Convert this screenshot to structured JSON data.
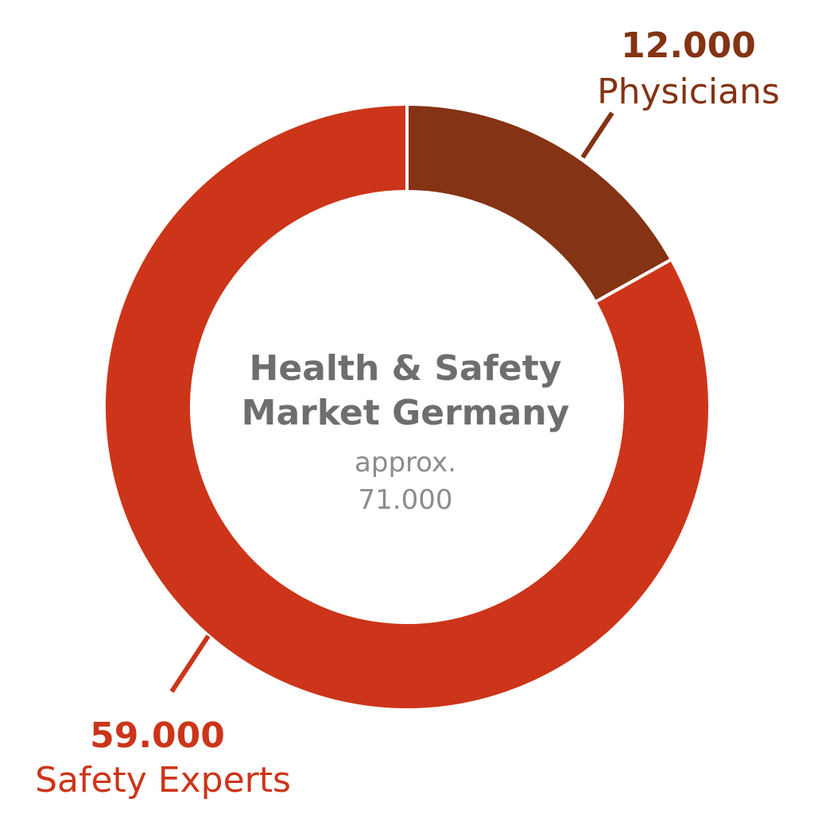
{
  "chart_data": {
    "type": "pie",
    "title_lines": [
      "Health & Safety",
      "Market Germany"
    ],
    "subtitle_lines": [
      "approx.",
      "71.000"
    ],
    "total": 71000,
    "slices": [
      {
        "name": "Physicians",
        "value": 12000,
        "value_label": "12.000",
        "color": "#843314"
      },
      {
        "name": "Safety Experts",
        "value": 59000,
        "value_label": "59.000",
        "color": "#cc3519"
      }
    ],
    "colors": {
      "title": "#6e6e6e",
      "subtitle": "#8c8c8c",
      "separator": "#ffffff"
    }
  }
}
